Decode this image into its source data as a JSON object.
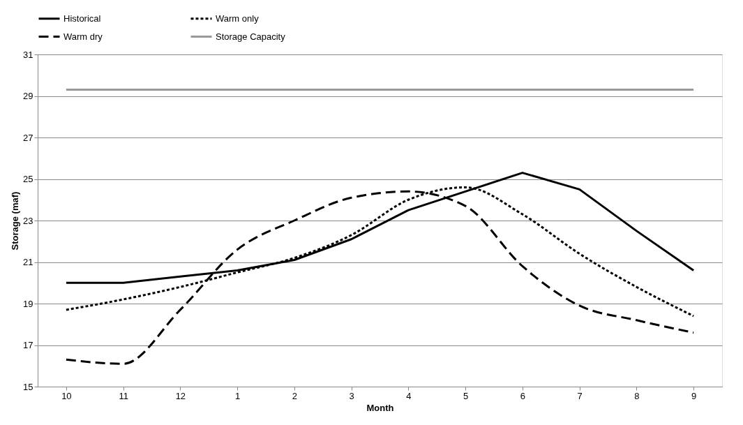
{
  "chart_data": {
    "type": "line",
    "xlabel": "Month",
    "ylabel": "Storage (maf)",
    "categories": [
      "10",
      "11",
      "12",
      "1",
      "2",
      "3",
      "4",
      "5",
      "6",
      "7",
      "8",
      "9"
    ],
    "series": [
      {
        "name": "Historical",
        "color": "#000000",
        "line_style": "solid",
        "values": [
          20.0,
          20.0,
          20.3,
          20.6,
          21.1,
          22.1,
          23.5,
          24.4,
          25.3,
          24.5,
          22.5,
          20.6
        ]
      },
      {
        "name": "Warm only",
        "color": "#000000",
        "line_style": "dotted",
        "values": [
          18.7,
          19.2,
          19.8,
          20.5,
          21.2,
          22.3,
          24.0,
          24.6,
          23.3,
          21.4,
          19.8,
          18.4
        ]
      },
      {
        "name": "Warm dry",
        "color": "#000000",
        "line_style": "dashed",
        "values": [
          16.3,
          16.1,
          18.7,
          21.6,
          23.0,
          24.1,
          24.4,
          23.7,
          20.8,
          18.9,
          18.2,
          17.6
        ]
      },
      {
        "name": "Storage Capacity",
        "color": "#999999",
        "line_style": "solid",
        "values": [
          29.3,
          29.3,
          29.3,
          29.3,
          29.3,
          29.3,
          29.3,
          29.3,
          29.3,
          29.3,
          29.3,
          29.3
        ]
      }
    ],
    "ylim": [
      15,
      31
    ],
    "yticks": [
      15,
      17,
      19,
      21,
      23,
      25,
      27,
      29,
      31
    ],
    "grid": "y",
    "legend": "top",
    "marker": "none"
  }
}
